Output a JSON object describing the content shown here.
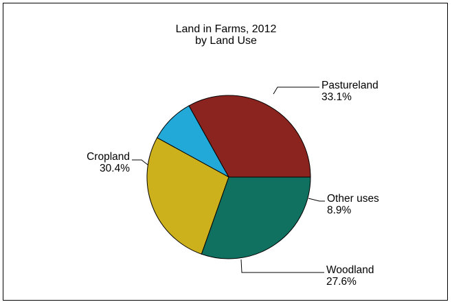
{
  "chart_data": {
    "type": "pie",
    "title": "Land in Farms, 2012",
    "subtitle": "by Land Use",
    "slices": [
      {
        "label": "Pastureland",
        "value": 33.1,
        "value_label": "33.1%",
        "color": "#8B231E"
      },
      {
        "label": "Other uses",
        "value": 8.9,
        "value_label": "8.9%",
        "color": "#22A9D8"
      },
      {
        "label": "Woodland",
        "value": 27.6,
        "value_label": "27.6%",
        "color": "#CDB11C"
      },
      {
        "label": "Cropland",
        "value": 30.4,
        "value_label": "30.4%",
        "color": "#117161"
      }
    ],
    "legend": "none",
    "grid": false
  }
}
